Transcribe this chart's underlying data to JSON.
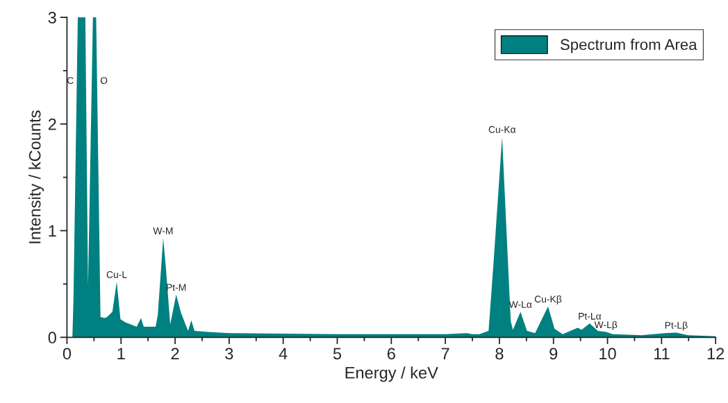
{
  "chart_data": {
    "type": "area",
    "xlabel": "Energy / keV",
    "ylabel": "Intensity / kCounts",
    "xlim": [
      0,
      12
    ],
    "ylim": [
      0,
      3
    ],
    "xticks": [
      0,
      {
        "value": 0.5,
        "label": null
      },
      1,
      {
        "value": 1.5,
        "label": null
      },
      2,
      {
        "value": 2.5,
        "label": null
      },
      3,
      {
        "value": 3.5,
        "label": null
      },
      4,
      {
        "value": 4.5,
        "label": null
      },
      5,
      {
        "value": 5.5,
        "label": null
      },
      6,
      {
        "value": 6.5,
        "label": null
      },
      7,
      {
        "value": 7.5,
        "label": null
      },
      8,
      {
        "value": 8.5,
        "label": null
      },
      9,
      {
        "value": 9.5,
        "label": null
      },
      10,
      {
        "value": 10.5,
        "label": null
      },
      11,
      {
        "value": 11.5,
        "label": null
      },
      12
    ],
    "yticks": [
      0,
      {
        "value": 0.5,
        "label": null
      },
      1,
      {
        "value": 1.5,
        "label": null
      },
      2,
      {
        "value": 2.5,
        "label": null
      },
      3
    ],
    "grid": false,
    "legend": "top right",
    "series": [
      {
        "name": "Spectrum from Area",
        "color": "#008080",
        "x": [
          0,
          0.1,
          0.12,
          0.2,
          0.34,
          0.39,
          0.48,
          0.54,
          0.62,
          0.7,
          0.74,
          0.84,
          0.92,
          0.99,
          1.08,
          1.29,
          1.37,
          1.42,
          1.64,
          1.68,
          1.78,
          1.83,
          1.91,
          2.02,
          2.11,
          2.24,
          2.3,
          2.36,
          2.6,
          3,
          4,
          5,
          6,
          7,
          7.4,
          7.5,
          7.63,
          7.8,
          7.89,
          8.05,
          8.12,
          8.21,
          8.25,
          8.39,
          8.51,
          8.66,
          8.9,
          9.02,
          9.17,
          9.45,
          9.52,
          9.67,
          9.82,
          9.97,
          10.1,
          10.63,
          11.06,
          11.27,
          11.49,
          12
        ],
        "values": [
          0,
          0,
          0.35,
          3,
          3,
          0.48,
          3,
          3,
          0.19,
          0.18,
          0.19,
          0.24,
          0.52,
          0.17,
          0.14,
          0.1,
          0.18,
          0.1,
          0.1,
          0.21,
          0.93,
          0.65,
          0.12,
          0.4,
          0.23,
          0.06,
          0.16,
          0.06,
          0.05,
          0.04,
          0.035,
          0.03,
          0.03,
          0.03,
          0.04,
          0.03,
          0.03,
          0.06,
          0.69,
          1.88,
          1.12,
          0.15,
          0.07,
          0.24,
          0.06,
          0.04,
          0.29,
          0.08,
          0.03,
          0.09,
          0.07,
          0.13,
          0.06,
          0.05,
          0.03,
          0.02,
          0.04,
          0.045,
          0.02,
          0.01
        ]
      }
    ],
    "annotations": [
      {
        "text": "C",
        "x": 0.18,
        "y": 2.4
      },
      {
        "text": "O",
        "x": 0.56,
        "y": 2.4
      },
      {
        "text": "Cu-L",
        "x": 0.92,
        "y": 0.52
      },
      {
        "text": "W-M",
        "x": 1.78,
        "y": 0.93
      },
      {
        "text": "Pt-M",
        "x": 2.02,
        "y": 0.4
      },
      {
        "text": "Cu-Kα",
        "x": 8.05,
        "y": 1.88
      },
      {
        "text": "W-Lα",
        "x": 8.39,
        "y": 0.24
      },
      {
        "text": "Cu-Kβ",
        "x": 8.9,
        "y": 0.29
      },
      {
        "text": "Pt-Lα",
        "x": 9.67,
        "y": 0.13
      },
      {
        "text": "W-Lβ",
        "x": 9.97,
        "y": 0.05
      },
      {
        "text": "Pt-Lβ",
        "x": 11.27,
        "y": 0.045
      }
    ]
  }
}
